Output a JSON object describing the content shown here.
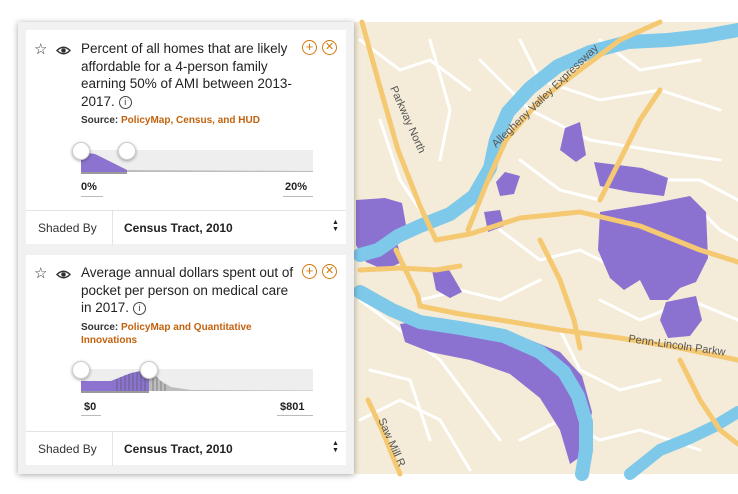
{
  "map": {
    "labels": {
      "parkway_north": "Parkway North",
      "allegheny_valley_expressway": "Allegheny Valley Expressway",
      "penn_lincoln_parkway": "Penn-Lincoln Parkw",
      "saw_mill_run": "Saw Mill R"
    },
    "colors": {
      "land": "#f4ecd8",
      "water": "#7ec8ea",
      "highway": "#f5c872",
      "road": "#ffffff",
      "shade": "#8c72d0"
    }
  },
  "layers": [
    {
      "title": "Percent of all homes that are likely affordable for a 4-person family earning 50% of AMI between 2013-2017.",
      "info_icon": "i",
      "source_prefix": "Source:",
      "source_link": "PolicyMap, Census, and HUD",
      "range_min": 0,
      "range_max": 20,
      "range_min_label": "0%",
      "range_max_label": "20%",
      "shaded_by_label": "Shaded By",
      "shaded_by_value": "Census Tract, 2010"
    },
    {
      "title": "Average annual dollars spent out of pocket per person on medical care in 2017.",
      "info_icon": "i",
      "source_prefix": "Source:",
      "source_link": "PolicyMap and Quantitative Innovations",
      "range_min": 0,
      "range_max": 801,
      "range_min_label": "$0",
      "range_max_label": "$801",
      "shaded_by_label": "Shaded By",
      "shaded_by_value": "Census Tract, 2010"
    }
  ],
  "icons": {
    "favorite": "star-icon",
    "visibility": "eye-icon",
    "add": "plus-circle-icon",
    "remove": "close-circle-icon",
    "select": "sort-arrows-icon"
  }
}
